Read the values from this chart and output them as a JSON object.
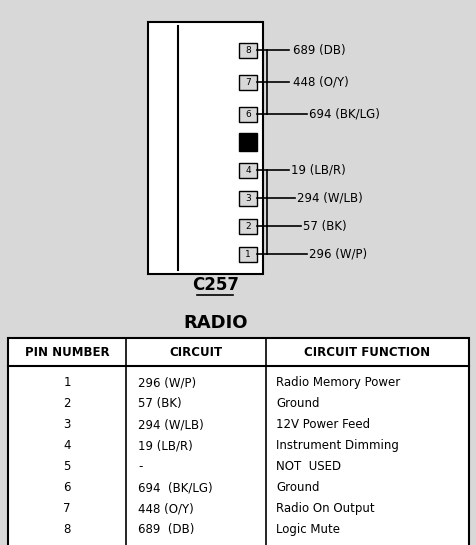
{
  "title_connector": "C257",
  "title_component": "RADIO",
  "bg_color": "#d8d8d8",
  "table_header": [
    "PIN NUMBER",
    "CIRCUIT",
    "CIRCUIT FUNCTION"
  ],
  "table_rows": [
    [
      "1",
      "296 (W/P)",
      "Radio Memory Power"
    ],
    [
      "2",
      "57 (BK)",
      "Ground"
    ],
    [
      "3",
      "294 (W/LB)",
      "12V Power Feed"
    ],
    [
      "4",
      "19 (LB/R)",
      "Instrument Dimming"
    ],
    [
      "5",
      "-",
      "NOT  USED"
    ],
    [
      "6",
      "694  (BK/LG)",
      "Ground"
    ],
    [
      "7",
      "448 (O/Y)",
      "Radio On Output"
    ],
    [
      "8",
      "689  (DB)",
      "Logic Mute"
    ]
  ],
  "pin_labels_right": [
    [
      8,
      "689 (DB)"
    ],
    [
      7,
      "448 (O/Y)"
    ],
    [
      6,
      "694 (BK/LG)"
    ],
    [
      4,
      "19 (LB/R)"
    ],
    [
      3,
      "294 (W/LB)"
    ],
    [
      2,
      "57 (BK)"
    ],
    [
      1,
      "296 (W/P)"
    ]
  ],
  "connector_color": "#ffffff",
  "line_color": "#000000",
  "text_color": "#000000"
}
